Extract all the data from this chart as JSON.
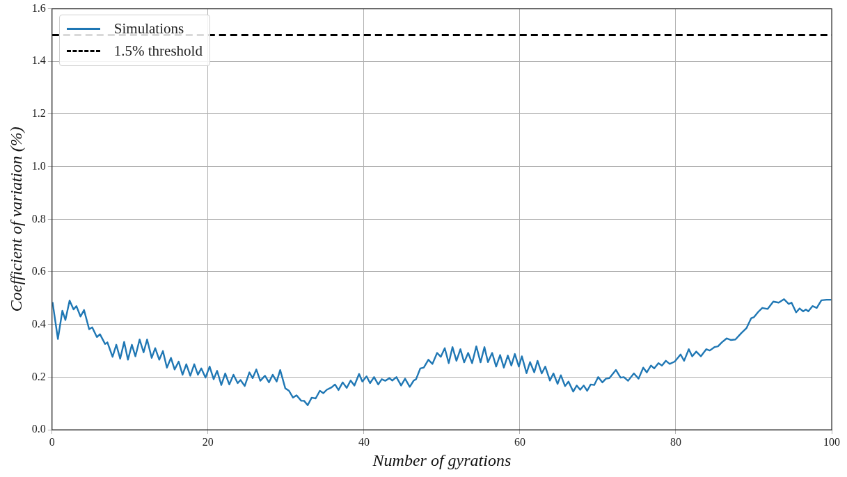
{
  "chart_data": {
    "type": "line",
    "xlabel": "Number of gyrations",
    "ylabel": "Coefficient of variation (%)",
    "xlim": [
      0,
      100
    ],
    "ylim": [
      0,
      1.6
    ],
    "xticks": [
      0,
      20,
      40,
      60,
      80,
      100
    ],
    "yticks": [
      {
        "value": 0,
        "label": "0.0"
      },
      0.2,
      0.4,
      0.6,
      0.8,
      {
        "value": 1,
        "label": "1.0"
      },
      1.2,
      1.4,
      1.6
    ],
    "grid": true,
    "legend": "top left",
    "marker": "none",
    "series": [
      {
        "name": "Simulations",
        "color": "#1f77b4",
        "line_style": "solid",
        "x": [
          0.06,
          0.75,
          1.32,
          1.71,
          2.25,
          2.76,
          3.12,
          3.65,
          4.1,
          4.76,
          5.15,
          5.75,
          6.14,
          6.8,
          7.1,
          7.76,
          8.24,
          8.74,
          9.25,
          9.73,
          10.24,
          10.69,
          11.23,
          11.74,
          12.19,
          12.78,
          13.23,
          13.75,
          14.22,
          14.73,
          15.25,
          15.72,
          16.24,
          16.74,
          17.22,
          17.73,
          18.24,
          18.71,
          19.14,
          19.68,
          20.21,
          20.73,
          21.17,
          21.71,
          22.21,
          22.73,
          23.27,
          23.81,
          24.17,
          24.71,
          25.31,
          25.73,
          26.2,
          26.71,
          27.31,
          27.82,
          28.3,
          28.81,
          29.26,
          29.92,
          30.39,
          30.91,
          31.36,
          31.96,
          32.32,
          32.79,
          33.3,
          33.81,
          34.35,
          34.8,
          35.24,
          35.85,
          36.29,
          36.74,
          37.28,
          37.79,
          38.3,
          38.78,
          39.38,
          39.8,
          40.34,
          40.79,
          41.3,
          41.84,
          42.29,
          42.74,
          43.28,
          43.64,
          44.17,
          44.77,
          45.28,
          45.88,
          46.39,
          46.69,
          47.23,
          47.68,
          48.27,
          48.79,
          49.39,
          49.86,
          50.37,
          50.88,
          51.36,
          51.87,
          52.38,
          52.86,
          53.37,
          53.88,
          54.42,
          54.96,
          55.46,
          55.91,
          56.45,
          56.96,
          57.47,
          57.95,
          58.46,
          58.91,
          59.36,
          59.87,
          60.26,
          60.86,
          61.31,
          61.85,
          62.27,
          62.81,
          63.26,
          63.86,
          64.31,
          64.84,
          65.26,
          65.8,
          66.24,
          66.85,
          67.3,
          67.74,
          68.19,
          68.64,
          69.09,
          69.54,
          70.05,
          70.59,
          71.04,
          71.49,
          72.33,
          72.92,
          73.34,
          73.88,
          74.63,
          75.23,
          75.83,
          76.28,
          76.82,
          77.24,
          77.78,
          78.23,
          78.73,
          79.22,
          79.87,
          80.62,
          81.07,
          81.67,
          82.11,
          82.63,
          83.22,
          83.91,
          84.36,
          84.96,
          85.41,
          85.91,
          86.52,
          87.05,
          87.65,
          88.4,
          89.09,
          89.68,
          90.04,
          90.58,
          91.1,
          91.79,
          92.51,
          93.2,
          93.89,
          94.49,
          94.85,
          95.44,
          95.89,
          96.34,
          96.7,
          97.0,
          97.54,
          98.08,
          98.68,
          99.34,
          99.94
        ],
        "values": [
          0.485,
          0.345,
          0.452,
          0.417,
          0.491,
          0.457,
          0.47,
          0.43,
          0.455,
          0.382,
          0.389,
          0.352,
          0.363,
          0.326,
          0.332,
          0.277,
          0.323,
          0.27,
          0.334,
          0.266,
          0.323,
          0.279,
          0.343,
          0.294,
          0.343,
          0.273,
          0.31,
          0.266,
          0.299,
          0.236,
          0.273,
          0.229,
          0.259,
          0.209,
          0.249,
          0.205,
          0.249,
          0.209,
          0.233,
          0.198,
          0.24,
          0.192,
          0.224,
          0.17,
          0.214,
          0.172,
          0.209,
          0.177,
          0.189,
          0.166,
          0.218,
          0.196,
          0.229,
          0.186,
          0.205,
          0.18,
          0.209,
          0.183,
          0.227,
          0.157,
          0.148,
          0.122,
          0.131,
          0.11,
          0.11,
          0.093,
          0.122,
          0.119,
          0.148,
          0.139,
          0.152,
          0.161,
          0.172,
          0.151,
          0.18,
          0.159,
          0.187,
          0.168,
          0.212,
          0.183,
          0.203,
          0.177,
          0.2,
          0.172,
          0.192,
          0.186,
          0.196,
          0.187,
          0.2,
          0.168,
          0.194,
          0.163,
          0.187,
          0.192,
          0.233,
          0.236,
          0.266,
          0.25,
          0.292,
          0.277,
          0.31,
          0.253,
          0.314,
          0.262,
          0.306,
          0.256,
          0.292,
          0.253,
          0.317,
          0.256,
          0.314,
          0.257,
          0.292,
          0.24,
          0.284,
          0.236,
          0.282,
          0.244,
          0.288,
          0.24,
          0.279,
          0.215,
          0.257,
          0.218,
          0.262,
          0.214,
          0.24,
          0.187,
          0.214,
          0.174,
          0.207,
          0.166,
          0.183,
          0.145,
          0.168,
          0.152,
          0.168,
          0.148,
          0.172,
          0.17,
          0.2,
          0.18,
          0.194,
          0.196,
          0.227,
          0.198,
          0.2,
          0.186,
          0.214,
          0.194,
          0.236,
          0.218,
          0.244,
          0.233,
          0.253,
          0.244,
          0.262,
          0.25,
          0.259,
          0.286,
          0.262,
          0.306,
          0.279,
          0.297,
          0.279,
          0.306,
          0.301,
          0.314,
          0.317,
          0.332,
          0.347,
          0.341,
          0.343,
          0.367,
          0.387,
          0.424,
          0.428,
          0.448,
          0.463,
          0.459,
          0.487,
          0.483,
          0.496,
          0.478,
          0.483,
          0.446,
          0.461,
          0.45,
          0.457,
          0.45,
          0.47,
          0.463,
          0.492,
          0.494,
          0.494
        ]
      },
      {
        "name": "1.5% threshold",
        "color": "#000000",
        "line_style": "dashed",
        "x": [
          0,
          100
        ],
        "values": [
          1.5,
          1.5
        ]
      }
    ]
  }
}
